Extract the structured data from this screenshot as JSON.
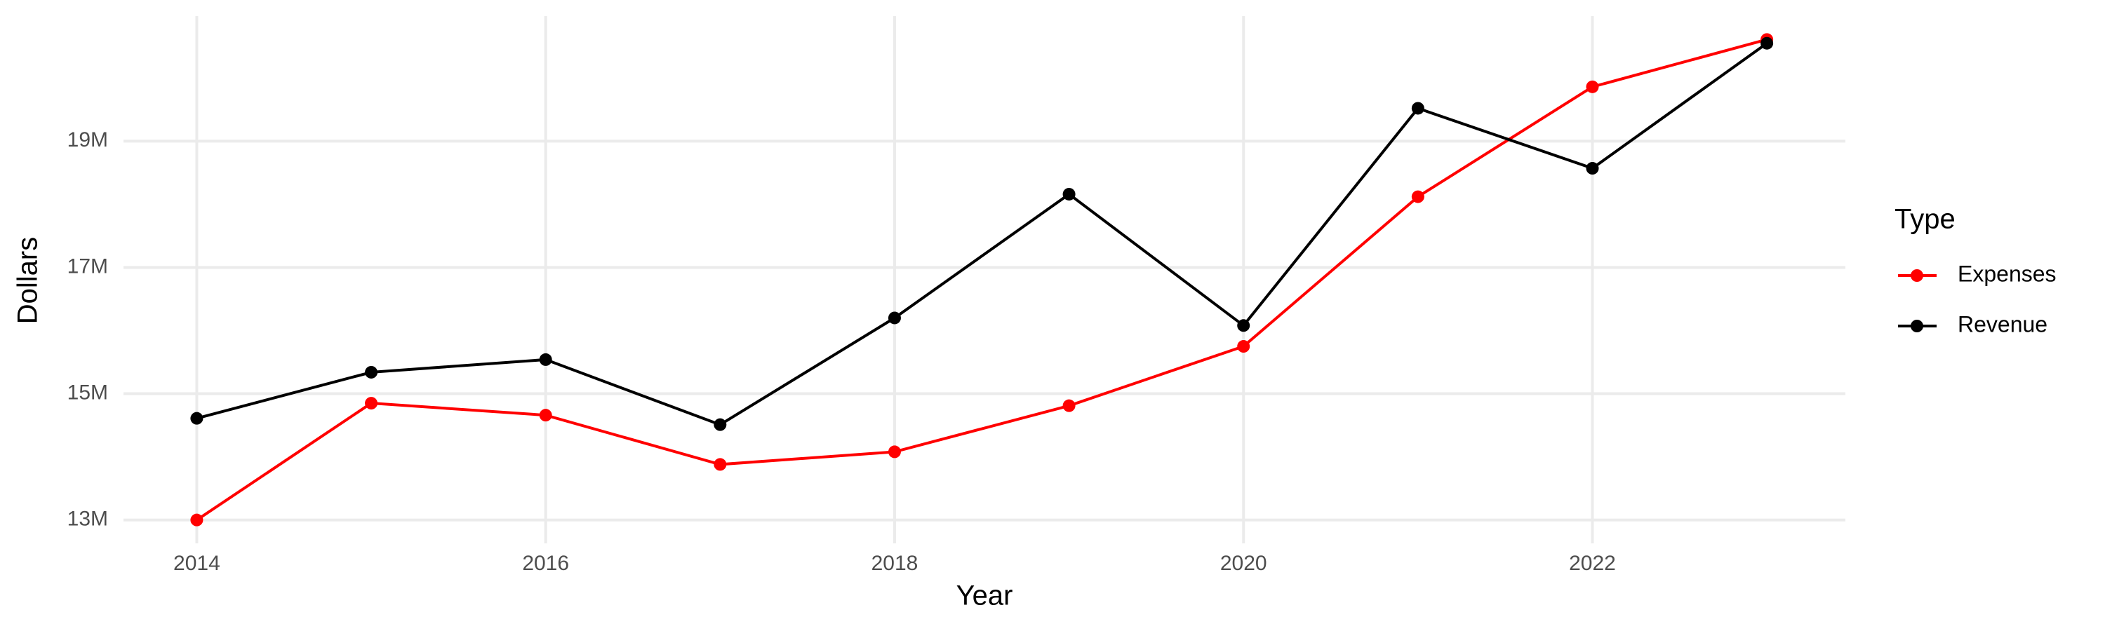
{
  "chart_data": {
    "type": "line",
    "x_label": "Year",
    "y_label": "Dollars",
    "legend_title": "Type",
    "x": [
      2014,
      2015,
      2016,
      2017,
      2018,
      2019,
      2020,
      2021,
      2022,
      2023
    ],
    "series": [
      {
        "name": "Expenses",
        "color": "#ff0000",
        "values": [
          13000000,
          14850000,
          14660000,
          13880000,
          14080000,
          14810000,
          15750000,
          18120000,
          19860000,
          20610000
        ]
      },
      {
        "name": "Revenue",
        "color": "#000000",
        "values": [
          14610000,
          15340000,
          15540000,
          14510000,
          16200000,
          18160000,
          16080000,
          19520000,
          18570000,
          20550000
        ]
      }
    ],
    "xlim": [
      2013.58,
      2023.45
    ],
    "xticks": [
      2014,
      2016,
      2018,
      2020,
      2022
    ],
    "ylim": [
      12630000,
      20980000
    ],
    "yticks": [
      {
        "value": 13000000,
        "label": "13M"
      },
      {
        "value": 15000000,
        "label": "15M"
      },
      {
        "value": 17000000,
        "label": "17M"
      },
      {
        "value": 19000000,
        "label": "19M"
      }
    ],
    "grid": true,
    "legend_position": "right"
  }
}
